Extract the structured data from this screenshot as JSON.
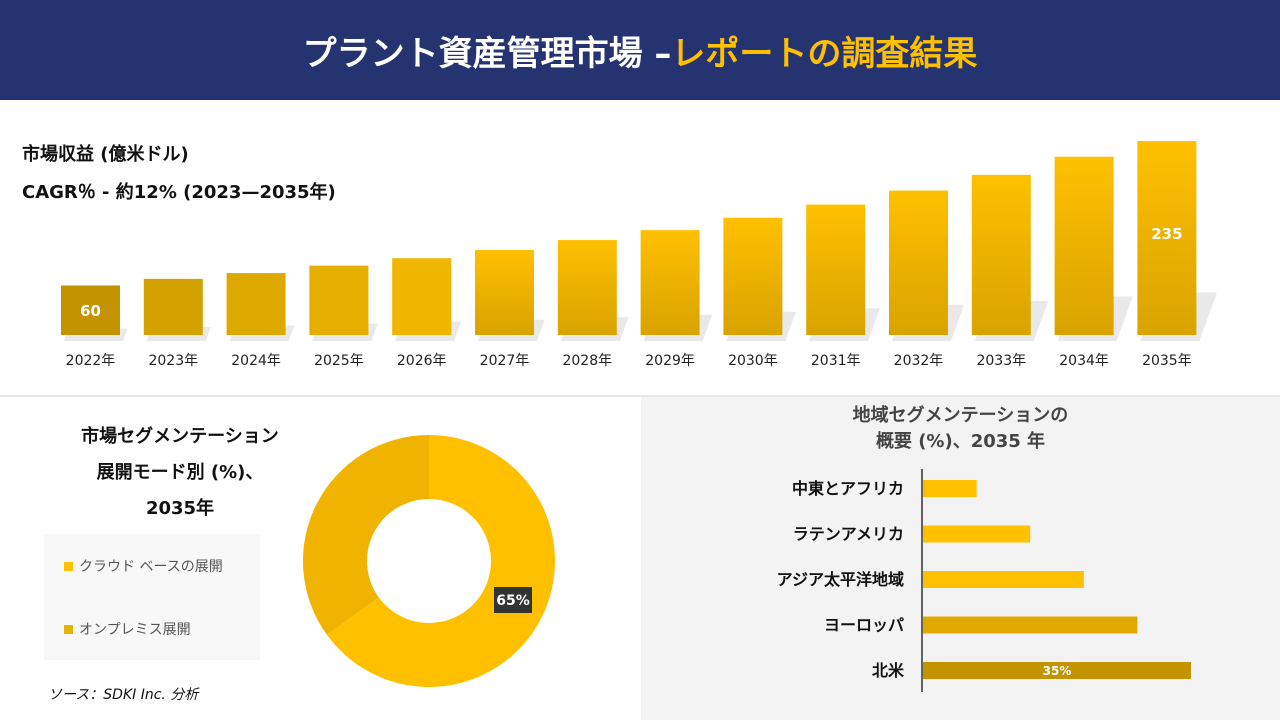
{
  "header": {
    "title_main": "プラント資産管理市場 –",
    "title_accent": "レポートの調査結果"
  },
  "revenue": {
    "title": "市場収益 (億米ドル)",
    "cagr": "CAGR％ - 約12% (2023—2035年)"
  },
  "segment": {
    "title_lines": [
      "市場セグメンテーション",
      "展開モード別 (%)、",
      "2035年"
    ],
    "source": "ソース：SDKI Inc. 分析"
  },
  "region": {
    "title_lines": [
      "地域セグメンテーションの",
      "概要 (%)、2035 年"
    ]
  },
  "colors": {
    "header_bg": "#253470",
    "accent": "#FFC000",
    "bar_light": "#FFC000",
    "bar_dark": "#C49400",
    "label_bg": "#333333"
  },
  "chart_data": [
    {
      "type": "bar",
      "title": "市場収益 (億米ドル)",
      "categories": [
        "2022年",
        "2023年",
        "2024年",
        "2025年",
        "2026年",
        "2027年",
        "2028年",
        "2029年",
        "2030年",
        "2031年",
        "2032年",
        "2033年",
        "2034年",
        "2035年"
      ],
      "values": [
        60,
        68,
        75,
        84,
        93,
        103,
        115,
        127,
        142,
        158,
        175,
        194,
        216,
        235
      ],
      "data_labels": {
        "0": "60",
        "13": "235"
      },
      "ylim": [
        0,
        235
      ],
      "grid": false
    },
    {
      "type": "pie",
      "subtype": "donut",
      "title": "市場セグメンテーション 展開モード別 (%)、2035年",
      "labels": [
        "クラウド ベースの展開",
        "オンプレミス展開"
      ],
      "values": [
        65,
        35
      ],
      "colors": [
        "#FFC000",
        "#F0B400"
      ],
      "data_labels": [
        "65%",
        ""
      ],
      "legend": "left"
    },
    {
      "type": "bar",
      "orientation": "horizontal",
      "title": "地域セグメンテーションの概要 (%)、2035 年",
      "categories": [
        "中東とアフリカ",
        "ラテンアメリカ",
        "アジア太平洋地域",
        "ヨーロッパ",
        "北米"
      ],
      "values": [
        7,
        14,
        21,
        28,
        35
      ],
      "data_labels": {
        "4": "35%"
      },
      "colors": [
        "#FFC000",
        "#FFC000",
        "#FFC000",
        "#E0A800",
        "#C49400"
      ]
    }
  ]
}
